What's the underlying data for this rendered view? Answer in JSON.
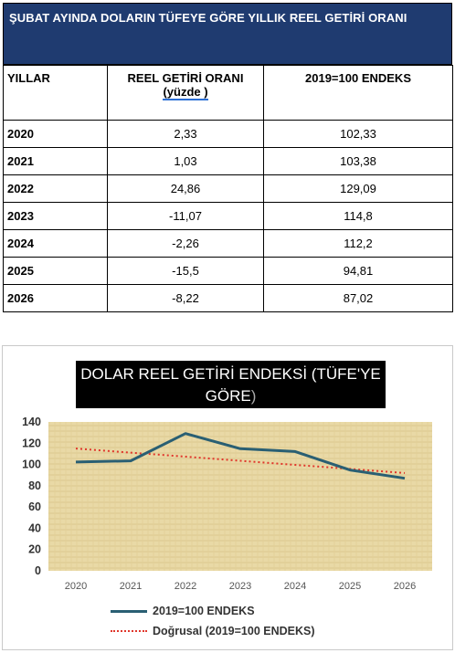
{
  "table": {
    "title": "ŞUBAT AYINDA DOLARIN TÜFEYE GÖRE YILLIK REEL GETİRİ ORANI",
    "headers": {
      "col1": "YILLAR",
      "col2_line1": "REEL GETİRİ ORANI",
      "col2_line2": "(yüzde )",
      "col3": "2019=100 ENDEKS"
    },
    "rows": [
      {
        "year": "2020",
        "rate": "2,33",
        "index": "102,33"
      },
      {
        "year": "2021",
        "rate": "1,03",
        "index": "103,38"
      },
      {
        "year": "2022",
        "rate": "24,86",
        "index": "129,09"
      },
      {
        "year": "2023",
        "rate": "-11,07",
        "index": "114,8"
      },
      {
        "year": "2024",
        "rate": "-2,26",
        "index": "112,2"
      },
      {
        "year": "2025",
        "rate": "-15,5",
        "index": "94,81"
      },
      {
        "year": "2026",
        "rate": "-8,22",
        "index": "87,02"
      }
    ]
  },
  "chart": {
    "title_main": "DOLAR REEL GETİRİ ENDEKSİ (TÜFE'YE GÖRE",
    "title_end": ")"
  },
  "chart_data": {
    "type": "line",
    "x": [
      "2020",
      "2021",
      "2022",
      "2023",
      "2024",
      "2025",
      "2026"
    ],
    "ylim": [
      0,
      140
    ],
    "yticks": [
      0,
      20,
      40,
      60,
      80,
      100,
      120,
      140
    ],
    "grid": false,
    "legend_position": "bottom",
    "series": [
      {
        "name": "2019=100 ENDEKS",
        "values": [
          102.33,
          103.38,
          129.09,
          114.8,
          112.2,
          94.81,
          87.02
        ],
        "color": "#2a5f73",
        "style": "solid"
      },
      {
        "name": "Doğrusal (2019=100 ENDEKS)",
        "values": [
          114.99,
          111.16,
          107.33,
          103.5,
          99.67,
          95.84,
          92.01
        ],
        "color": "#e0362b",
        "style": "dotted"
      }
    ]
  }
}
